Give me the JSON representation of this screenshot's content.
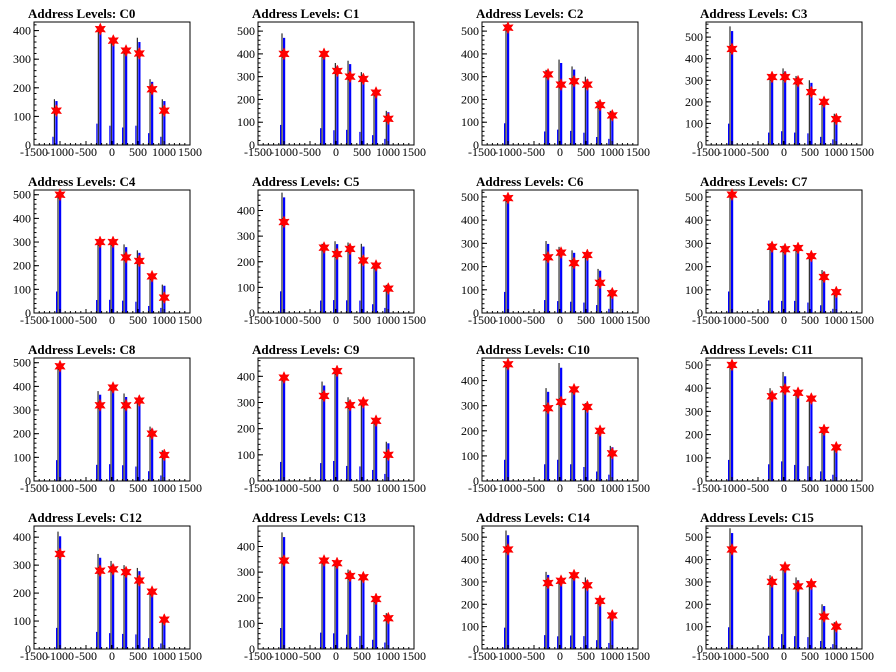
{
  "colors": {
    "frame": "#000000",
    "histogram": "#0000ff",
    "peak_marker": "#ff0000",
    "background": "#ffffff"
  },
  "chart_data": [
    {
      "type": "bar",
      "title": "Address Levels: C0",
      "xlim": [
        -1500,
        1500
      ],
      "ylim": [
        0,
        430
      ],
      "xticks": [
        -1500,
        -1000,
        -500,
        0,
        500,
        1000,
        1500
      ],
      "yticks": [
        0,
        100,
        200,
        300,
        400
      ],
      "peaks": [
        {
          "x": -1070,
          "y": 120,
          "h": 160
        },
        {
          "x": -225,
          "y": 405,
          "h": 415
        },
        {
          "x": 25,
          "y": 365,
          "h": 375
        },
        {
          "x": 270,
          "y": 330,
          "h": 340
        },
        {
          "x": 525,
          "y": 320,
          "h": 375
        },
        {
          "x": 770,
          "y": 195,
          "h": 230
        },
        {
          "x": 1005,
          "y": 120,
          "h": 160
        }
      ]
    },
    {
      "type": "bar",
      "title": "Address Levels: C1",
      "xlim": [
        -1500,
        1500
      ],
      "ylim": [
        0,
        540
      ],
      "xticks": [
        -1500,
        -1000,
        -500,
        0,
        500,
        1000,
        1500
      ],
      "yticks": [
        0,
        100,
        200,
        300,
        400,
        500
      ],
      "peaks": [
        {
          "x": -1000,
          "y": 400,
          "h": 490
        },
        {
          "x": -230,
          "y": 400,
          "h": 410
        },
        {
          "x": 25,
          "y": 325,
          "h": 360
        },
        {
          "x": 270,
          "y": 300,
          "h": 370
        },
        {
          "x": 525,
          "y": 290,
          "h": 320
        },
        {
          "x": 770,
          "y": 230,
          "h": 240
        },
        {
          "x": 1005,
          "y": 115,
          "h": 150
        }
      ]
    },
    {
      "type": "bar",
      "title": "Address Levels: C2",
      "xlim": [
        -1500,
        1500
      ],
      "ylim": [
        0,
        540
      ],
      "xticks": [
        -1500,
        -1000,
        -500,
        0,
        500,
        1000,
        1500
      ],
      "yticks": [
        0,
        100,
        200,
        300,
        400,
        500
      ],
      "peaks": [
        {
          "x": -1000,
          "y": 515,
          "h": 530
        },
        {
          "x": -230,
          "y": 310,
          "h": 330
        },
        {
          "x": 20,
          "y": 265,
          "h": 375
        },
        {
          "x": 270,
          "y": 280,
          "h": 345
        },
        {
          "x": 525,
          "y": 265,
          "h": 300
        },
        {
          "x": 770,
          "y": 175,
          "h": 195
        },
        {
          "x": 1005,
          "y": 130,
          "h": 150
        }
      ]
    },
    {
      "type": "bar",
      "title": "Address Levels: C3",
      "xlim": [
        -1500,
        1500
      ],
      "ylim": [
        0,
        570
      ],
      "xticks": [
        -1500,
        -1000,
        -500,
        0,
        500,
        1000,
        1500
      ],
      "yticks": [
        0,
        100,
        200,
        300,
        400,
        500
      ],
      "peaks": [
        {
          "x": -1000,
          "y": 445,
          "h": 550
        },
        {
          "x": -230,
          "y": 315,
          "h": 320
        },
        {
          "x": 20,
          "y": 315,
          "h": 355
        },
        {
          "x": 270,
          "y": 295,
          "h": 320
        },
        {
          "x": 525,
          "y": 245,
          "h": 300
        },
        {
          "x": 770,
          "y": 200,
          "h": 210
        },
        {
          "x": 1005,
          "y": 120,
          "h": 145
        }
      ]
    },
    {
      "type": "bar",
      "title": "Address Levels: C4",
      "xlim": [
        -1500,
        1500
      ],
      "ylim": [
        0,
        520
      ],
      "xticks": [
        -1500,
        -1000,
        -500,
        0,
        500,
        1000,
        1500
      ],
      "yticks": [
        0,
        100,
        200,
        300,
        400,
        500
      ],
      "peaks": [
        {
          "x": -1000,
          "y": 500,
          "h": 505
        },
        {
          "x": -230,
          "y": 300,
          "h": 305
        },
        {
          "x": 20,
          "y": 300,
          "h": 310
        },
        {
          "x": 270,
          "y": 235,
          "h": 290
        },
        {
          "x": 525,
          "y": 220,
          "h": 265
        },
        {
          "x": 770,
          "y": 155,
          "h": 165
        },
        {
          "x": 1005,
          "y": 65,
          "h": 120
        }
      ]
    },
    {
      "type": "bar",
      "title": "Address Levels: C5",
      "xlim": [
        -1500,
        1500
      ],
      "ylim": [
        0,
        480
      ],
      "xticks": [
        -1500,
        -1000,
        -500,
        0,
        500,
        1000,
        1500
      ],
      "yticks": [
        0,
        100,
        200,
        300,
        400
      ],
      "peaks": [
        {
          "x": -1000,
          "y": 355,
          "h": 470
        },
        {
          "x": -230,
          "y": 255,
          "h": 270
        },
        {
          "x": 20,
          "y": 230,
          "h": 280
        },
        {
          "x": 270,
          "y": 250,
          "h": 275
        },
        {
          "x": 525,
          "y": 205,
          "h": 270
        },
        {
          "x": 770,
          "y": 185,
          "h": 190
        },
        {
          "x": 1005,
          "y": 95,
          "h": 110
        }
      ]
    },
    {
      "type": "bar",
      "title": "Address Levels: C6",
      "xlim": [
        -1500,
        1500
      ],
      "ylim": [
        0,
        530
      ],
      "xticks": [
        -1500,
        -1000,
        -500,
        0,
        500,
        1000,
        1500
      ],
      "yticks": [
        0,
        100,
        200,
        300,
        400,
        500
      ],
      "peaks": [
        {
          "x": -1000,
          "y": 495,
          "h": 505
        },
        {
          "x": -230,
          "y": 240,
          "h": 310
        },
        {
          "x": 20,
          "y": 260,
          "h": 285
        },
        {
          "x": 270,
          "y": 215,
          "h": 270
        },
        {
          "x": 525,
          "y": 250,
          "h": 250
        },
        {
          "x": 770,
          "y": 130,
          "h": 190
        },
        {
          "x": 1005,
          "y": 85,
          "h": 100
        }
      ]
    },
    {
      "type": "bar",
      "title": "Address Levels: C7",
      "xlim": [
        -1500,
        1500
      ],
      "ylim": [
        0,
        530
      ],
      "xticks": [
        -1500,
        -1000,
        -500,
        0,
        500,
        1000,
        1500
      ],
      "yticks": [
        0,
        100,
        200,
        300,
        400,
        500
      ],
      "peaks": [
        {
          "x": -1000,
          "y": 510,
          "h": 515
        },
        {
          "x": -230,
          "y": 285,
          "h": 300
        },
        {
          "x": 20,
          "y": 275,
          "h": 290
        },
        {
          "x": 270,
          "y": 280,
          "h": 290
        },
        {
          "x": 525,
          "y": 245,
          "h": 250
        },
        {
          "x": 770,
          "y": 155,
          "h": 185
        },
        {
          "x": 1005,
          "y": 90,
          "h": 100
        }
      ]
    },
    {
      "type": "bar",
      "title": "Address Levels: C8",
      "xlim": [
        -1500,
        1500
      ],
      "ylim": [
        0,
        520
      ],
      "xticks": [
        -1500,
        -1000,
        -500,
        0,
        500,
        1000,
        1500
      ],
      "yticks": [
        0,
        100,
        200,
        300,
        400,
        500
      ],
      "peaks": [
        {
          "x": -1000,
          "y": 485,
          "h": 490
        },
        {
          "x": -230,
          "y": 320,
          "h": 380
        },
        {
          "x": 20,
          "y": 395,
          "h": 395
        },
        {
          "x": 270,
          "y": 320,
          "h": 370
        },
        {
          "x": 525,
          "y": 340,
          "h": 340
        },
        {
          "x": 770,
          "y": 200,
          "h": 230
        },
        {
          "x": 1005,
          "y": 110,
          "h": 130
        }
      ]
    },
    {
      "type": "bar",
      "title": "Address Levels: C9",
      "xlim": [
        -1500,
        1500
      ],
      "ylim": [
        0,
        470
      ],
      "xticks": [
        -1500,
        -1000,
        -500,
        0,
        500,
        1000,
        1500
      ],
      "yticks": [
        0,
        100,
        200,
        300,
        400
      ],
      "peaks": [
        {
          "x": -1000,
          "y": 395,
          "h": 405
        },
        {
          "x": -230,
          "y": 325,
          "h": 380
        },
        {
          "x": 20,
          "y": 420,
          "h": 425
        },
        {
          "x": 270,
          "y": 290,
          "h": 320
        },
        {
          "x": 525,
          "y": 300,
          "h": 310
        },
        {
          "x": 770,
          "y": 230,
          "h": 235
        },
        {
          "x": 1005,
          "y": 100,
          "h": 150
        }
      ]
    },
    {
      "type": "bar",
      "title": "Address Levels: C10",
      "xlim": [
        -1500,
        1500
      ],
      "ylim": [
        0,
        490
      ],
      "xticks": [
        -1500,
        -1000,
        -500,
        0,
        500,
        1000,
        1500
      ],
      "yticks": [
        0,
        100,
        200,
        300,
        400
      ],
      "peaks": [
        {
          "x": -1000,
          "y": 465,
          "h": 470
        },
        {
          "x": -230,
          "y": 290,
          "h": 370
        },
        {
          "x": 20,
          "y": 315,
          "h": 470
        },
        {
          "x": 270,
          "y": 365,
          "h": 370
        },
        {
          "x": 525,
          "y": 295,
          "h": 310
        },
        {
          "x": 770,
          "y": 200,
          "h": 210
        },
        {
          "x": 1005,
          "y": 110,
          "h": 140
        }
      ]
    },
    {
      "type": "bar",
      "title": "Address Levels: C11",
      "xlim": [
        -1500,
        1500
      ],
      "ylim": [
        0,
        530
      ],
      "xticks": [
        -1500,
        -1000,
        -500,
        0,
        500,
        1000,
        1500
      ],
      "yticks": [
        0,
        100,
        200,
        300,
        400,
        500
      ],
      "peaks": [
        {
          "x": -1000,
          "y": 500,
          "h": 505
        },
        {
          "x": -230,
          "y": 365,
          "h": 400
        },
        {
          "x": 20,
          "y": 395,
          "h": 470
        },
        {
          "x": 270,
          "y": 380,
          "h": 385
        },
        {
          "x": 525,
          "y": 355,
          "h": 355
        },
        {
          "x": 770,
          "y": 220,
          "h": 230
        },
        {
          "x": 1005,
          "y": 145,
          "h": 150
        }
      ]
    },
    {
      "type": "bar",
      "title": "Address Levels: C12",
      "xlim": [
        -1500,
        1500
      ],
      "ylim": [
        0,
        440
      ],
      "xticks": [
        -1500,
        -1000,
        -500,
        0,
        500,
        1000,
        1500
      ],
      "yticks": [
        0,
        100,
        200,
        300,
        400
      ],
      "peaks": [
        {
          "x": -1000,
          "y": 340,
          "h": 420
        },
        {
          "x": -230,
          "y": 280,
          "h": 340
        },
        {
          "x": 20,
          "y": 285,
          "h": 315
        },
        {
          "x": 270,
          "y": 275,
          "h": 300
        },
        {
          "x": 525,
          "y": 245,
          "h": 290
        },
        {
          "x": 770,
          "y": 205,
          "h": 215
        },
        {
          "x": 1005,
          "y": 105,
          "h": 110
        }
      ]
    },
    {
      "type": "bar",
      "title": "Address Levels: C13",
      "xlim": [
        -1500,
        1500
      ],
      "ylim": [
        0,
        480
      ],
      "xticks": [
        -1500,
        -1000,
        -500,
        0,
        500,
        1000,
        1500
      ],
      "yticks": [
        0,
        100,
        200,
        300,
        400
      ],
      "peaks": [
        {
          "x": -1000,
          "y": 345,
          "h": 455
        },
        {
          "x": -230,
          "y": 345,
          "h": 355
        },
        {
          "x": 20,
          "y": 335,
          "h": 340
        },
        {
          "x": 270,
          "y": 285,
          "h": 310
        },
        {
          "x": 525,
          "y": 280,
          "h": 285
        },
        {
          "x": 770,
          "y": 195,
          "h": 200
        },
        {
          "x": 1005,
          "y": 120,
          "h": 140
        }
      ]
    },
    {
      "type": "bar",
      "title": "Address Levels: C14",
      "xlim": [
        -1500,
        1500
      ],
      "ylim": [
        0,
        550
      ],
      "xticks": [
        -1500,
        -1000,
        -500,
        0,
        500,
        1000,
        1500
      ],
      "yticks": [
        0,
        100,
        200,
        300,
        400,
        500
      ],
      "peaks": [
        {
          "x": -1000,
          "y": 445,
          "h": 530
        },
        {
          "x": -230,
          "y": 295,
          "h": 345
        },
        {
          "x": 20,
          "y": 305,
          "h": 315
        },
        {
          "x": 270,
          "y": 330,
          "h": 335
        },
        {
          "x": 525,
          "y": 285,
          "h": 320
        },
        {
          "x": 770,
          "y": 215,
          "h": 220
        },
        {
          "x": 1005,
          "y": 150,
          "h": 150
        }
      ]
    },
    {
      "type": "bar",
      "title": "Address Levels: C15",
      "xlim": [
        -1500,
        1500
      ],
      "ylim": [
        0,
        550
      ],
      "xticks": [
        -1500,
        -1000,
        -500,
        0,
        500,
        1000,
        1500
      ],
      "yticks": [
        0,
        100,
        200,
        300,
        400,
        500
      ],
      "peaks": [
        {
          "x": -1000,
          "y": 445,
          "h": 540
        },
        {
          "x": -230,
          "y": 300,
          "h": 330
        },
        {
          "x": 20,
          "y": 365,
          "h": 370
        },
        {
          "x": 270,
          "y": 280,
          "h": 320
        },
        {
          "x": 525,
          "y": 290,
          "h": 295
        },
        {
          "x": 770,
          "y": 145,
          "h": 200
        },
        {
          "x": 1005,
          "y": 100,
          "h": 120
        }
      ]
    }
  ]
}
